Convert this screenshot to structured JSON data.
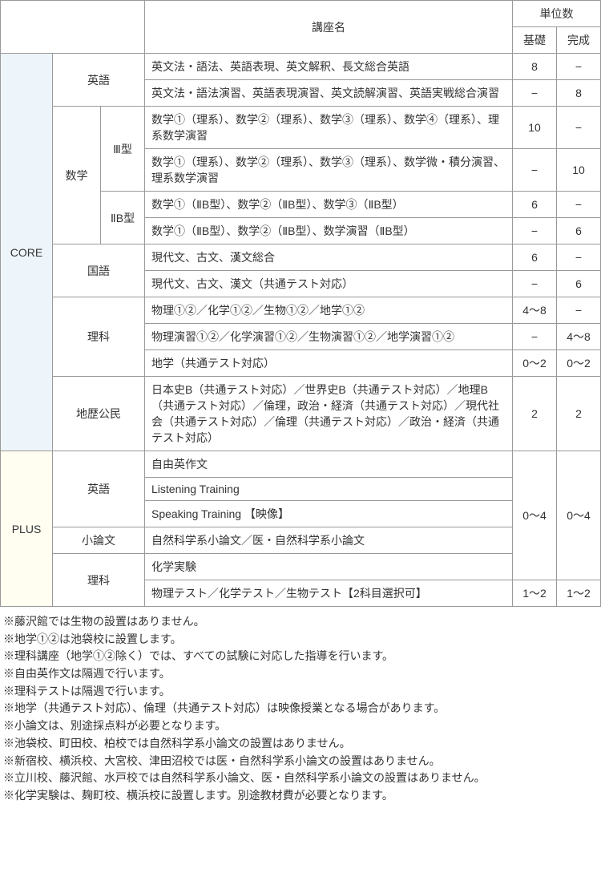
{
  "headers": {
    "course_name": "講座名",
    "credits": "単位数",
    "basic": "基礎",
    "complete": "完成"
  },
  "sections": {
    "core": "CORE",
    "plus": "PLUS"
  },
  "subjects": {
    "english": "英語",
    "math": "数学",
    "japanese": "国語",
    "science": "理科",
    "social": "地歴公民",
    "essay": "小論文"
  },
  "types": {
    "type3": "Ⅲ型",
    "type2b": "ⅡB型"
  },
  "rows": [
    {
      "course": "英文法・語法、英語表現、英文解釈、長文総合英語",
      "basic": "8",
      "complete": "−"
    },
    {
      "course": "英文法・語法演習、英語表現演習、英文読解演習、英語実戦総合演習",
      "basic": "−",
      "complete": "8"
    },
    {
      "course": "数学①（理系）、数学②（理系）、数学③（理系）、数学④（理系）、理系数学演習",
      "basic": "10",
      "complete": "−"
    },
    {
      "course": "数学①（理系）、数学②（理系）、数学③（理系）、数学微・積分演習、理系数学演習",
      "basic": "−",
      "complete": "10"
    },
    {
      "course": "数学①（ⅡB型）、数学②（ⅡB型）、数学③（ⅡB型）",
      "basic": "6",
      "complete": "−"
    },
    {
      "course": "数学①（ⅡB型）、数学②（ⅡB型）、数学演習（ⅡB型）",
      "basic": "−",
      "complete": "6"
    },
    {
      "course": "現代文、古文、漢文総合",
      "basic": "6",
      "complete": "−"
    },
    {
      "course": "現代文、古文、漢文（共通テスト対応）",
      "basic": "−",
      "complete": "6"
    },
    {
      "course": "物理①②／化学①②／生物①②／地学①②",
      "basic": "4〜8",
      "complete": "−"
    },
    {
      "course": "物理演習①②／化学演習①②／生物演習①②／地学演習①②",
      "basic": "−",
      "complete": "4〜8"
    },
    {
      "course": "地学（共通テスト対応）",
      "basic": "0〜2",
      "complete": "0〜2"
    },
    {
      "course": "日本史B（共通テスト対応）／世界史B（共通テスト対応）／地理B（共通テスト対応）／倫理，政治・経済（共通テスト対応）／現代社会（共通テスト対応）／倫理（共通テスト対応）／政治・経済（共通テスト対応）",
      "basic": "2",
      "complete": "2"
    },
    {
      "course": "自由英作文",
      "basic": "0〜4",
      "complete": "0〜4"
    },
    {
      "course": "Listening Training",
      "basic": "",
      "complete": ""
    },
    {
      "course": "Speaking Training 【映像】",
      "basic": "",
      "complete": ""
    },
    {
      "course": "自然科学系小論文／医・自然科学系小論文",
      "basic": "",
      "complete": ""
    },
    {
      "course": "化学実験",
      "basic": "",
      "complete": ""
    },
    {
      "course": "物理テスト／化学テスト／生物テスト【2科目選択可】",
      "basic": "1〜2",
      "complete": "1〜2"
    }
  ],
  "notes": [
    "※藤沢館では生物の設置はありません。",
    "※地学①②は池袋校に設置します。",
    "※理科講座（地学①②除く）では、すべての試験に対応した指導を行います。",
    "※自由英作文は隔週で行います。",
    "※理科テストは隔週で行います。",
    "※地学（共通テスト対応）、倫理（共通テスト対応）は映像授業となる場合があります。",
    "※小論文は、別途採点料が必要となります。",
    "※池袋校、町田校、柏校では自然科学系小論文の設置はありません。",
    "※新宿校、横浜校、大宮校、津田沼校では医・自然科学系小論文の設置はありません。",
    "※立川校、藤沢館、水戸校では自然科学系小論文、医・自然科学系小論文の設置はありません。",
    "※化学実験は、麹町校、横浜校に設置します。別途教材費が必要となります。"
  ]
}
